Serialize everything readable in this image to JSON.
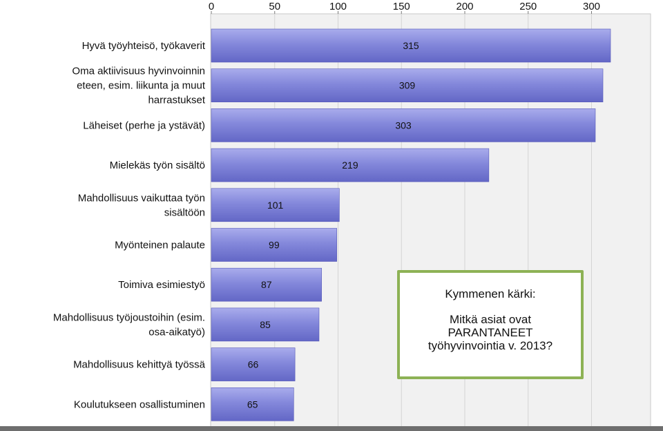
{
  "chart_data": {
    "type": "bar",
    "orientation": "horizontal",
    "categories": [
      [
        "Hyvä työyhteisö, työkaverit"
      ],
      [
        "Oma aktiivisuus hyvinvoinnin",
        "eteen, esim. liikunta ja muut",
        "harrastukset"
      ],
      [
        "Läheiset (perhe ja ystävät)"
      ],
      [
        "Mielekäs työn sisältö"
      ],
      [
        "Mahdollisuus vaikuttaa työn",
        "sisältöön"
      ],
      [
        "Myönteinen palaute"
      ],
      [
        "Toimiva esimiestyö"
      ],
      [
        "Mahdollisuus työjoustoihin (esim.",
        "osa-aikatyö)"
      ],
      [
        "Mahdollisuus kehittyä työssä"
      ],
      [
        "Koulutukseen osallistuminen"
      ]
    ],
    "values": [
      315,
      309,
      303,
      219,
      101,
      99,
      87,
      85,
      66,
      65
    ],
    "x_ticks": [
      "0",
      "50",
      "100",
      "150",
      "200",
      "250",
      "300"
    ],
    "xlim": [
      0,
      350
    ],
    "grid": true,
    "bar_color": "#7c80d6"
  },
  "callout": {
    "title": "Kymmenen kärki:",
    "lines": [
      "Mitkä asiat ovat",
      "PARANTANEET",
      "työhyvinvointia v. 2013?"
    ],
    "border_color": "#8db255"
  }
}
